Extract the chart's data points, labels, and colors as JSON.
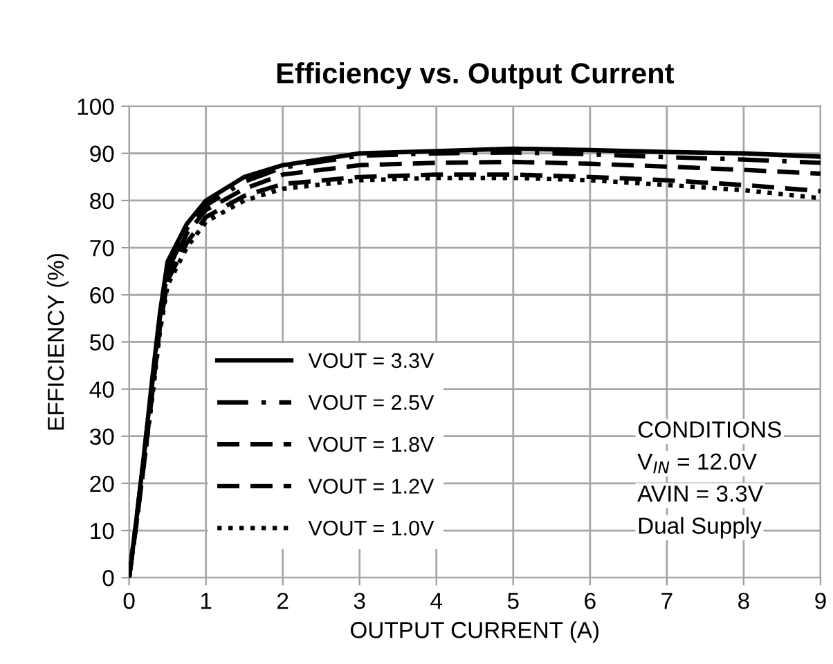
{
  "chart_data": {
    "type": "line",
    "title": "Efficiency vs. Output Current",
    "xlabel": "OUTPUT CURRENT (A)",
    "ylabel": "EFFICIENCY (%)",
    "x": [
      0,
      0.1,
      0.2,
      0.3,
      0.4,
      0.5,
      0.75,
      1,
      1.5,
      2,
      3,
      4,
      5,
      6,
      7,
      8,
      9
    ],
    "series": [
      {
        "name": "VOUT = 3.3V",
        "color": "#000000",
        "line_style": "solid",
        "values": [
          0,
          13,
          27,
          42,
          56,
          67,
          75,
          80,
          85,
          87.5,
          90,
          90.5,
          91,
          90.7,
          90.3,
          90,
          89.3
        ]
      },
      {
        "name": "VOUT = 2.5V",
        "color": "#000000",
        "line_style": "dashdot",
        "values": [
          0,
          13,
          27,
          41,
          55,
          65,
          74,
          79,
          84,
          87,
          89.5,
          90,
          90.2,
          89.8,
          89.2,
          88.7,
          88
        ]
      },
      {
        "name": "VOUT = 1.8V",
        "color": "#000000",
        "line_style": "dashed",
        "values": [
          0,
          12.5,
          26,
          40,
          54,
          64,
          73,
          78,
          82.5,
          85.5,
          87.5,
          88,
          88.2,
          87.8,
          87.2,
          86.5,
          85.7
        ]
      },
      {
        "name": "VOUT = 1.2V",
        "color": "#000000",
        "line_style": "dashed",
        "values": [
          0,
          12,
          25,
          39,
          53,
          63,
          71,
          76.5,
          81,
          83.5,
          85,
          85.5,
          85.5,
          85,
          84.3,
          83.3,
          82
        ]
      },
      {
        "name": "VOUT = 1.0V",
        "color": "#000000",
        "line_style": "dotted",
        "values": [
          0,
          12,
          25,
          38,
          52,
          62,
          70,
          75.5,
          80,
          82.5,
          84.3,
          84.8,
          84.8,
          84.3,
          83.3,
          82.2,
          80.5
        ]
      }
    ],
    "xlim": [
      0,
      9
    ],
    "ylim": [
      0,
      100
    ],
    "xticks": [
      0,
      1,
      2,
      3,
      4,
      5,
      6,
      7,
      8,
      9
    ],
    "yticks": [
      0,
      10,
      20,
      30,
      40,
      50,
      60,
      70,
      80,
      90,
      100
    ],
    "grid": true,
    "legend": "bottom left",
    "marker": "none",
    "annotations": [
      "CONDITIONS",
      "V$_{IN}$ = 12.0V",
      "AVIN = 3.3V",
      "Dual Supply"
    ]
  }
}
